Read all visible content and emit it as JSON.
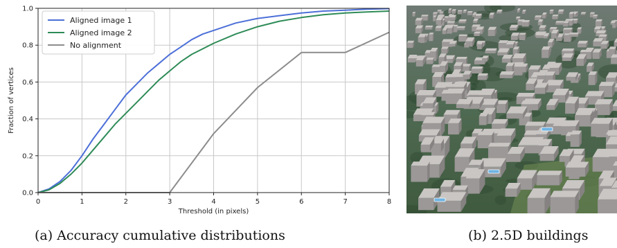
{
  "captions": {
    "a": "(a) Accuracy cumulative distributions",
    "b": "(b) 2.5D buildings"
  },
  "chart_data": {
    "type": "line",
    "title": "",
    "xlabel": "Threshold (in pixels)",
    "ylabel": "Fraction of vertices",
    "xlim": [
      0,
      8
    ],
    "ylim": [
      0,
      1
    ],
    "xticks": [
      0,
      1,
      2,
      3,
      4,
      5,
      6,
      7,
      8
    ],
    "yticks": [
      0.0,
      0.2,
      0.4,
      0.6,
      0.8,
      1.0
    ],
    "grid": true,
    "legend_position": "top-left",
    "series": [
      {
        "name": "Aligned image 1",
        "color": "#4c6fd8",
        "x": [
          0,
          0.25,
          0.5,
          0.75,
          1,
          1.25,
          1.5,
          1.75,
          2,
          2.25,
          2.5,
          2.75,
          3,
          3.25,
          3.5,
          3.75,
          4,
          4.5,
          5,
          5.5,
          6,
          6.5,
          7,
          7.5,
          8
        ],
        "y": [
          0,
          0.02,
          0.06,
          0.12,
          0.2,
          0.29,
          0.37,
          0.45,
          0.53,
          0.59,
          0.65,
          0.7,
          0.75,
          0.79,
          0.83,
          0.86,
          0.88,
          0.92,
          0.945,
          0.96,
          0.975,
          0.985,
          0.99,
          0.995,
          0.998
        ]
      },
      {
        "name": "Aligned image 2",
        "color": "#2e8b57",
        "x": [
          0,
          0.25,
          0.5,
          0.75,
          1,
          1.25,
          1.5,
          1.75,
          2,
          2.25,
          2.5,
          2.75,
          3,
          3.25,
          3.5,
          3.75,
          4,
          4.5,
          5,
          5.5,
          6,
          6.5,
          7,
          7.5,
          8
        ],
        "y": [
          0,
          0.015,
          0.05,
          0.1,
          0.16,
          0.23,
          0.3,
          0.37,
          0.43,
          0.49,
          0.55,
          0.61,
          0.66,
          0.71,
          0.75,
          0.78,
          0.81,
          0.86,
          0.9,
          0.93,
          0.95,
          0.965,
          0.975,
          0.98,
          0.985
        ]
      },
      {
        "name": "No alignment",
        "color": "#8c8c8c",
        "x": [
          0,
          1,
          2,
          3,
          4,
          5,
          6,
          7,
          8
        ],
        "y": [
          0,
          0,
          0,
          0,
          0.32,
          0.57,
          0.76,
          0.76,
          0.87
        ]
      }
    ]
  },
  "photo": {
    "ground_color": "#4f6a52",
    "building_color": "#c9c6c4"
  }
}
